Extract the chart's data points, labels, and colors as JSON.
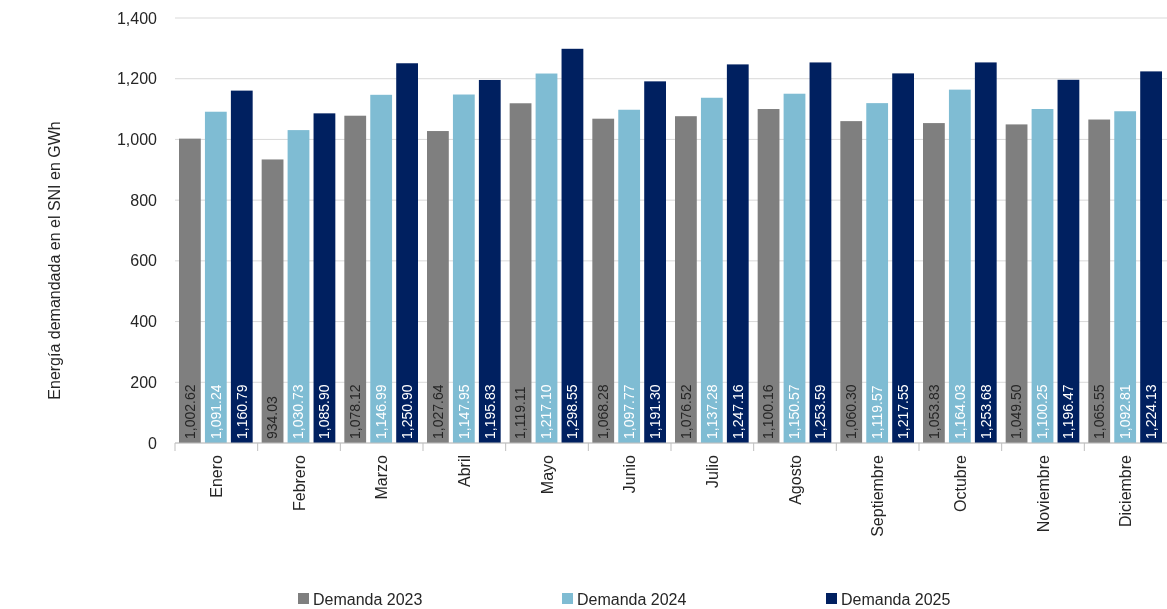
{
  "chart_data": {
    "type": "bar",
    "ylabel": "Energía demandada en el SNI en GWh",
    "categories": [
      "Enero",
      "Febrero",
      "Marzo",
      "Abril",
      "Mayo",
      "Junio",
      "Julio",
      "Agosto",
      "Septiembre",
      "Octubre",
      "Noviembre",
      "Diciembre"
    ],
    "series": [
      {
        "name": "Demanda 2023",
        "color": "#7f7f7f",
        "values": [
          1002.62,
          934.03,
          1078.12,
          1027.64,
          1119.11,
          1068.28,
          1076.52,
          1100.16,
          1060.3,
          1053.83,
          1049.5,
          1065.55
        ],
        "value_labels": [
          "1,002.62",
          "934.03",
          "1,078.12",
          "1,027.64",
          "1,119.11",
          "1,068.28",
          "1,076.52",
          "1,100.16",
          "1,060.30",
          "1,053.83",
          "1,049.50",
          "1,065.55"
        ]
      },
      {
        "name": "Demanda 2024",
        "color": "#7fbcd3",
        "values": [
          1091.24,
          1030.73,
          1146.99,
          1147.95,
          1217.1,
          1097.77,
          1137.28,
          1150.57,
          1119.57,
          1164.03,
          1100.25,
          1092.81
        ],
        "value_labels": [
          "1,091.24",
          "1,030.73",
          "1,146.99",
          "1,147.95",
          "1,217.10",
          "1,097.77",
          "1,137.28",
          "1,150.57",
          "1,119.57",
          "1,164.03",
          "1,100.25",
          "1,092.81"
        ]
      },
      {
        "name": "Demanda 2025",
        "color": "#002060",
        "values": [
          1160.79,
          1085.9,
          1250.9,
          1195.83,
          1298.55,
          1191.3,
          1247.16,
          1253.59,
          1217.55,
          1253.68,
          1196.47,
          1224.13
        ],
        "value_labels": [
          "1,160.79",
          "1,085.90",
          "1,250.90",
          "1,195.83",
          "1,298.55",
          "1,191.30",
          "1,247.16",
          "1,253.59",
          "1,217.55",
          "1,253.68",
          "1,196.47",
          "1,224.13"
        ]
      }
    ],
    "ylim": [
      0,
      1400
    ],
    "yticks": [
      0,
      200,
      400,
      600,
      800,
      {
        "value": 1000,
        "label": "1,000"
      },
      {
        "value": 1200,
        "label": "1,200"
      },
      {
        "value": 1400,
        "label": "1,400"
      }
    ],
    "grid": "y",
    "legend": "bottom"
  }
}
